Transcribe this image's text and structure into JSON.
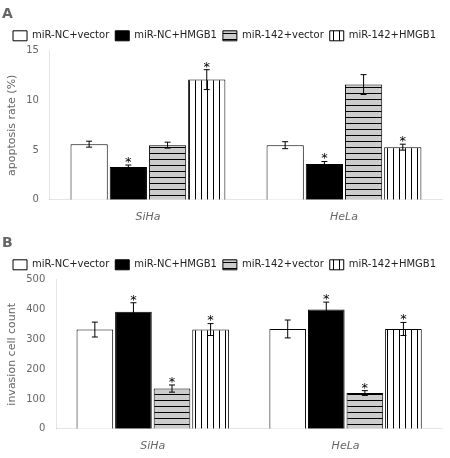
{
  "chart_data": [
    {
      "type": "bar",
      "title": "A",
      "ylabel": "apoptosis rate (%)",
      "categories": [
        "SiHa",
        "HeLa"
      ],
      "series": [
        {
          "name": "miR-NC+vector",
          "color": "#ffffff",
          "values": [
            5.6,
            5.5
          ],
          "errors": [
            0.3,
            0.35
          ]
        },
        {
          "name": "miR-NC+HMGB1",
          "color": "#000000",
          "values": [
            3.3,
            3.6
          ],
          "errors": [
            0.2,
            0.25
          ]
        },
        {
          "name": "miR-142+vector",
          "color": "#cccccc",
          "values": [
            5.5,
            11.6
          ],
          "errors": [
            0.3,
            1.0
          ]
        },
        {
          "name": "miR-142+HMGB1",
          "color": "#ffffff",
          "values": [
            12.1,
            5.3
          ],
          "errors": [
            1.0,
            0.3
          ]
        }
      ],
      "annotations": [
        {
          "category": "SiHa",
          "series": "miR-NC+HMGB1",
          "text": "*"
        },
        {
          "category": "SiHa",
          "series": "miR-142+HMGB1",
          "text": "*"
        },
        {
          "category": "HeLa",
          "series": "miR-NC+HMGB1",
          "text": "*"
        },
        {
          "category": "HeLa",
          "series": "miR-142+HMGB1",
          "text": "*"
        }
      ],
      "ylim": [
        0,
        15
      ],
      "yticks": [
        0,
        5,
        10,
        15
      ],
      "grid": false,
      "legend": "upper right"
    },
    {
      "type": "bar",
      "title": "B",
      "ylabel": "invasion cell count",
      "categories": [
        "SiHa",
        "HeLa"
      ],
      "series": [
        {
          "name": "miR-NC+vector",
          "color": "#ffffff",
          "values": [
            333,
            335
          ],
          "errors": [
            25,
            30
          ]
        },
        {
          "name": "miR-NC+HMGB1",
          "color": "#000000",
          "values": [
            393,
            400
          ],
          "errors": [
            30,
            25
          ]
        },
        {
          "name": "miR-142+vector",
          "color": "#cccccc",
          "values": [
            135,
            120
          ],
          "errors": [
            12,
            8
          ]
        },
        {
          "name": "miR-142+HMGB1",
          "color": "#ffffff",
          "values": [
            333,
            335
          ],
          "errors": [
            20,
            22
          ]
        }
      ],
      "annotations": [
        {
          "category": "SiHa",
          "series": "miR-NC+HMGB1",
          "text": "*"
        },
        {
          "category": "SiHa",
          "series": "miR-142+vector",
          "text": "*"
        },
        {
          "category": "SiHa",
          "series": "miR-142+HMGB1",
          "text": "*"
        },
        {
          "category": "HeLa",
          "series": "miR-NC+HMGB1",
          "text": "*"
        },
        {
          "category": "HeLa",
          "series": "miR-142+vector",
          "text": "*"
        },
        {
          "category": "HeLa",
          "series": "miR-142+HMGB1",
          "text": "*"
        }
      ],
      "ylim": [
        0,
        500
      ],
      "yticks": [
        0,
        100,
        200,
        300,
        400,
        500
      ],
      "grid": false,
      "legend": "upper right"
    }
  ]
}
